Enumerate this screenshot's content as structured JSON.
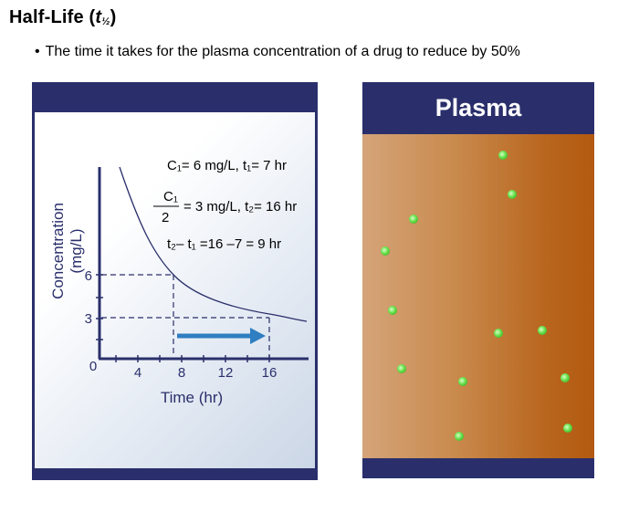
{
  "heading": {
    "main": "Half-Life (",
    "t": "t",
    "sub": "½",
    "close": ")"
  },
  "bullet": {
    "dot": "•",
    "text": "The time it takes for the plasma concentration of a drug to reduce by 50%"
  },
  "graph": {
    "ylabel_line1": "Concentration",
    "ylabel_line2": "(mg/L)",
    "xlabel": "Time (hr)",
    "origin": "0",
    "xticks": [
      "4",
      "8",
      "12",
      "16"
    ],
    "yticks": [
      "3",
      "6"
    ],
    "annotations": {
      "line1": "C₁= 6 mg/L, t₁= 7 hr",
      "frac_num": "C₁",
      "frac_den": "2",
      "line2": "= 3 mg/L, t₂= 16 hr",
      "line3": "t₂– t₁ =16 –7 =  9 hr"
    }
  },
  "plasma": {
    "title": "Plasma"
  },
  "colors": {
    "panel": "#2a2f6b",
    "curve": "#2a2f6b",
    "arrow": "#2f7ec1",
    "particle": "#4fcf2e"
  }
}
